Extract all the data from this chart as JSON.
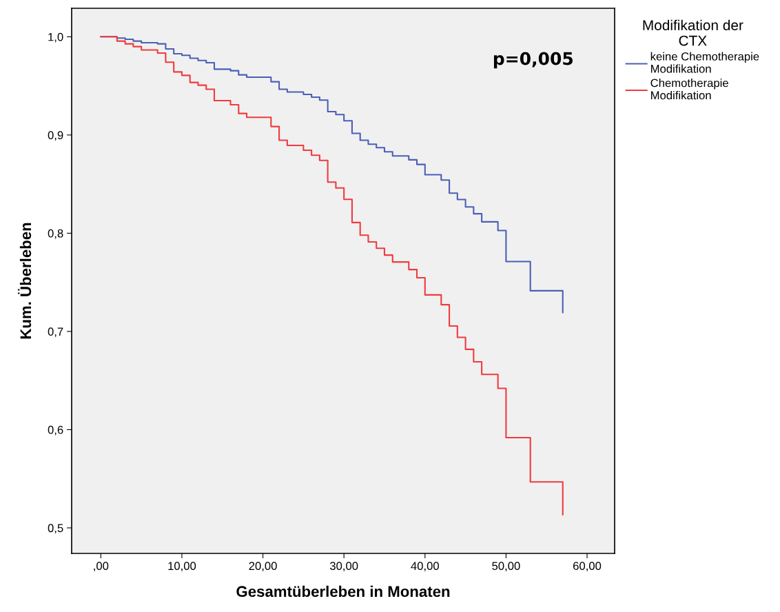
{
  "chart_data": {
    "type": "step",
    "xlabel": "Gesamtüberleben in Monaten",
    "ylabel": "Kum. Überleben",
    "legend_title": "Modifikation der\nCTX",
    "legend": "right",
    "grid": false,
    "annotations": [
      "p=0,005"
    ],
    "xlim": [
      -3.6,
      63.4
    ],
    "ylim": [
      0.474,
      1.029
    ],
    "xticks": [
      {
        "value": 0,
        "label": ",00"
      },
      {
        "value": 10,
        "label": "10,00"
      },
      {
        "value": 20,
        "label": "20,00"
      },
      {
        "value": 30,
        "label": "30,00"
      },
      {
        "value": 40,
        "label": "40,00"
      },
      {
        "value": 50,
        "label": "50,00"
      },
      {
        "value": 60,
        "label": "60,00"
      }
    ],
    "yticks": [
      {
        "value": 0.5,
        "label": "0,5"
      },
      {
        "value": 0.6,
        "label": "0,6"
      },
      {
        "value": 0.7,
        "label": "0,7"
      },
      {
        "value": 0.8,
        "label": "0,8"
      },
      {
        "value": 0.9,
        "label": "0,9"
      },
      {
        "value": 1.0,
        "label": "1,0"
      }
    ],
    "x": [
      0,
      2,
      3,
      4,
      5,
      7,
      8,
      9,
      10,
      11,
      12,
      13,
      14,
      16,
      17,
      18,
      21,
      22,
      23,
      25,
      26,
      27,
      28,
      29,
      30,
      31,
      32,
      33,
      34,
      35,
      36,
      38,
      39,
      40,
      42,
      43,
      44,
      45,
      46,
      47,
      49,
      50,
      53,
      57
    ],
    "series": [
      {
        "name": "keine Chemotherapie\nModifikation",
        "color": "#4a5fb5",
        "values": [
          1.0,
          0.9986,
          0.9974,
          0.9956,
          0.9939,
          0.9928,
          0.9876,
          0.9827,
          0.9811,
          0.9781,
          0.9759,
          0.9736,
          0.967,
          0.9654,
          0.9612,
          0.9588,
          0.9542,
          0.9465,
          0.9437,
          0.9413,
          0.9385,
          0.9355,
          0.9238,
          0.9208,
          0.9144,
          0.9016,
          0.8946,
          0.8906,
          0.8871,
          0.8829,
          0.8787,
          0.8747,
          0.87,
          0.8595,
          0.8541,
          0.8408,
          0.8343,
          0.8268,
          0.8198,
          0.8116,
          0.8027,
          0.7712,
          0.7414,
          0.7193
        ]
      },
      {
        "name": "Chemotherapie\nModifikation",
        "color": "#f03a3e",
        "values": [
          1.0,
          0.9956,
          0.9928,
          0.99,
          0.9865,
          0.9834,
          0.9741,
          0.9642,
          0.9607,
          0.9535,
          0.9507,
          0.9465,
          0.935,
          0.9308,
          0.9219,
          0.918,
          0.9086,
          0.8946,
          0.8894,
          0.8845,
          0.8794,
          0.8741,
          0.852,
          0.8461,
          0.8345,
          0.8109,
          0.798,
          0.7912,
          0.7847,
          0.7777,
          0.7707,
          0.763,
          0.7546,
          0.7372,
          0.7272,
          0.7055,
          0.694,
          0.6818,
          0.669,
          0.6562,
          0.6421,
          0.5919,
          0.5468,
          0.5135
        ]
      }
    ]
  }
}
